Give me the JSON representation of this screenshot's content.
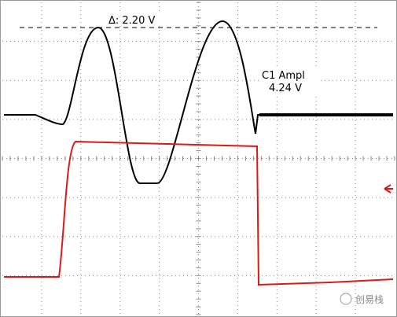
{
  "measurements": {
    "delta": "Δ: 2.20 V",
    "ampl_label": "C1 Ampl",
    "ampl_value": "4.24 V"
  },
  "watermark": "创易栈"
}
